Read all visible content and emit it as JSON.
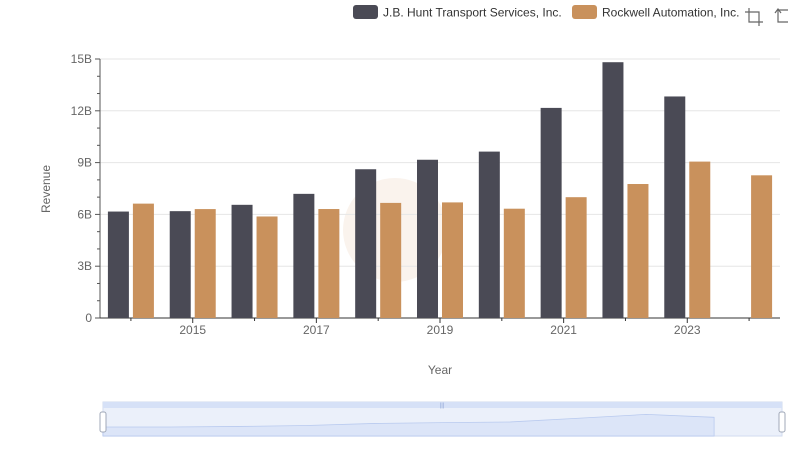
{
  "toolbar": {
    "icons": [
      "zoom-icon",
      "restore-icon"
    ]
  },
  "colors": {
    "series1": "#4a4a55",
    "series2": "#c9915c",
    "grid": "#e6e6e6",
    "axis": "#333333",
    "zoom_fill": "#d6e1f7",
    "zoom_border": "#b7c7ea"
  },
  "chart_data": {
    "type": "bar",
    "x": [
      2014,
      2015,
      2016,
      2017,
      2018,
      2019,
      2020,
      2021,
      2022,
      2023,
      2024
    ],
    "x_tick_labels": [
      "2015",
      "2017",
      "2019",
      "2021",
      "2023"
    ],
    "y_tick_labels": [
      "0",
      "3B",
      "6B",
      "9B",
      "12B",
      "15B"
    ],
    "xlabel": "Year",
    "ylabel": "Revenue",
    "ylim": [
      0,
      15000000000
    ],
    "grid": true,
    "legend_position": "top-right",
    "series": [
      {
        "name": "J.B. Hunt Transport Services, Inc.",
        "values": [
          6165000000,
          6188000000,
          6555000000,
          7190000000,
          8615000000,
          9165000000,
          9637000000,
          12168000000,
          14814000000,
          12830000000,
          null
        ]
      },
      {
        "name": "Rockwell Automation, Inc.",
        "values": [
          6624000000,
          6308000000,
          5880000000,
          6311000000,
          6666000000,
          6695000000,
          6330000000,
          6997000000,
          7760000000,
          9058000000,
          8264000000
        ]
      }
    ]
  }
}
